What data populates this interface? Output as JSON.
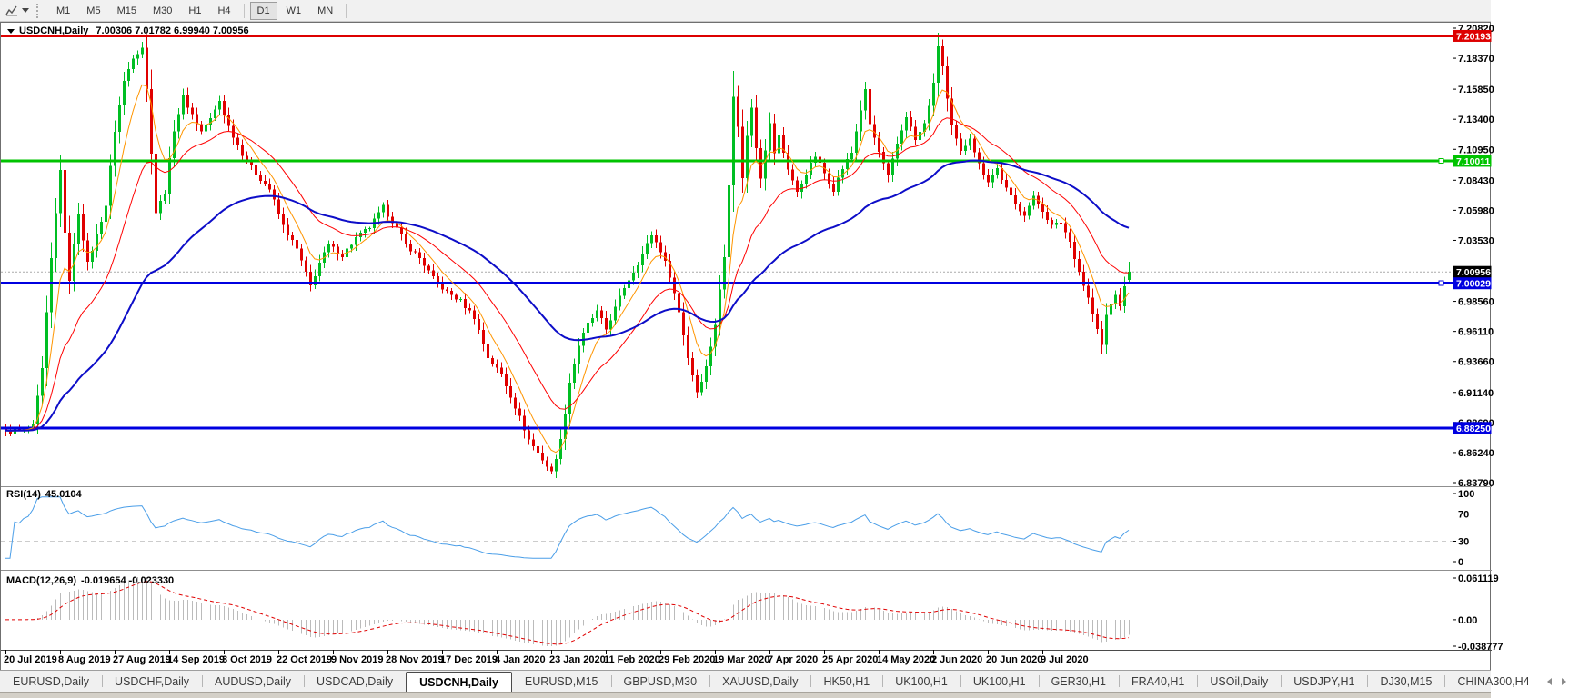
{
  "toolbar": {
    "timeframes": [
      "M1",
      "M5",
      "M15",
      "M30",
      "H1",
      "H4",
      "D1",
      "W1",
      "MN"
    ],
    "active": "D1",
    "separators_after": [
      "H4",
      "MN"
    ],
    "icons": [
      "chart-icon",
      "dropdown-caret-icon"
    ]
  },
  "chart_data": {
    "type": "candlestick",
    "title": "USDCNH,Daily",
    "ohlc_text": "7.00306 7.01782 6.99940 7.00956",
    "last_candle": {
      "open": 7.00306,
      "high": 7.01782,
      "low": 6.9994,
      "close": 7.00956
    },
    "num_candles": 248,
    "candles_per_label": 12,
    "x_axis_labels": [
      "20 Jul 2019",
      "8 Aug 2019",
      "27 Aug 2019",
      "14 Sep 2019",
      "3 Oct 2019",
      "22 Oct 2019",
      "9 Nov 2019",
      "28 Nov 2019",
      "17 Dec 2019",
      "4 Jan 2020",
      "23 Jan 2020",
      "11 Feb 2020",
      "29 Feb 2020",
      "19 Mar 2020",
      "7 Apr 2020",
      "25 Apr 2020",
      "14 May 2020",
      "2 Jun 2020",
      "20 Jun 2020",
      "9 Jul 2020"
    ],
    "price_axis_ticks": [
      "7.20820",
      "7.18370",
      "7.15850",
      "7.13400",
      "7.10950",
      "7.08430",
      "7.05980",
      "7.03530",
      "6.98560",
      "6.96110",
      "6.93660",
      "6.91140",
      "6.88690",
      "6.86240",
      "6.83790"
    ],
    "axis_top_value": 7.2082,
    "axis_bottom_value": 6.8379,
    "levels": [
      {
        "value": 7.20193,
        "label": "7.20193",
        "color": "#dd0000",
        "marker": false
      },
      {
        "value": 7.10011,
        "label": "7.10011",
        "color": "#00c300",
        "marker": true
      },
      {
        "value": 7.00029,
        "label": "7.00029",
        "color": "#0000e0",
        "marker": true
      },
      {
        "value": 6.8825,
        "label": "6.88250",
        "color": "#0000e0",
        "marker": false
      }
    ],
    "current_price": {
      "value": 7.00956,
      "label": "7.00956",
      "badge_color": "#000000"
    },
    "price_anchors": [
      [
        0,
        6.879
      ],
      [
        4,
        6.881
      ],
      [
        6,
        6.884
      ],
      [
        8,
        6.93
      ],
      [
        10,
        7.02
      ],
      [
        12,
        7.094
      ],
      [
        13,
        7.04
      ],
      [
        14,
        7.004
      ],
      [
        16,
        7.058
      ],
      [
        18,
        7.016
      ],
      [
        20,
        7.04
      ],
      [
        22,
        7.064
      ],
      [
        24,
        7.125
      ],
      [
        26,
        7.165
      ],
      [
        28,
        7.185
      ],
      [
        30,
        7.193
      ],
      [
        31,
        7.158
      ],
      [
        33,
        7.058
      ],
      [
        35,
        7.075
      ],
      [
        37,
        7.126
      ],
      [
        39,
        7.152
      ],
      [
        41,
        7.138
      ],
      [
        43,
        7.124
      ],
      [
        45,
        7.134
      ],
      [
        47,
        7.149
      ],
      [
        49,
        7.128
      ],
      [
        52,
        7.106
      ],
      [
        55,
        7.09
      ],
      [
        58,
        7.077
      ],
      [
        61,
        7.047
      ],
      [
        64,
        7.028
      ],
      [
        66,
        7.008
      ],
      [
        67,
        6.998
      ],
      [
        69,
        7.017
      ],
      [
        71,
        7.031
      ],
      [
        74,
        7.023
      ],
      [
        77,
        7.037
      ],
      [
        80,
        7.046
      ],
      [
        83,
        7.062
      ],
      [
        85,
        7.051
      ],
      [
        88,
        7.032
      ],
      [
        91,
        7.021
      ],
      [
        94,
        7.004
      ],
      [
        97,
        6.993
      ],
      [
        100,
        6.986
      ],
      [
        103,
        6.973
      ],
      [
        106,
        6.94
      ],
      [
        109,
        6.926
      ],
      [
        112,
        6.9
      ],
      [
        115,
        6.873
      ],
      [
        118,
        6.857
      ],
      [
        120,
        6.846
      ],
      [
        122,
        6.872
      ],
      [
        124,
        6.92
      ],
      [
        126,
        6.95
      ],
      [
        128,
        6.967
      ],
      [
        130,
        6.977
      ],
      [
        132,
        6.963
      ],
      [
        134,
        6.98
      ],
      [
        136,
        6.997
      ],
      [
        138,
        7.01
      ],
      [
        140,
        7.024
      ],
      [
        142,
        7.04
      ],
      [
        144,
        7.027
      ],
      [
        146,
        7.007
      ],
      [
        148,
        6.977
      ],
      [
        150,
        6.94
      ],
      [
        152,
        6.912
      ],
      [
        154,
        6.932
      ],
      [
        156,
        6.967
      ],
      [
        158,
        7.022
      ],
      [
        159,
        7.082
      ],
      [
        160,
        7.154
      ],
      [
        161,
        7.127
      ],
      [
        162,
        7.087
      ],
      [
        163,
        7.12
      ],
      [
        164,
        7.144
      ],
      [
        165,
        7.112
      ],
      [
        166,
        7.087
      ],
      [
        167,
        7.11
      ],
      [
        168,
        7.13
      ],
      [
        169,
        7.107
      ],
      [
        170,
        7.12
      ],
      [
        172,
        7.094
      ],
      [
        174,
        7.074
      ],
      [
        176,
        7.09
      ],
      [
        178,
        7.104
      ],
      [
        180,
        7.09
      ],
      [
        182,
        7.077
      ],
      [
        184,
        7.094
      ],
      [
        186,
        7.107
      ],
      [
        188,
        7.142
      ],
      [
        189,
        7.157
      ],
      [
        190,
        7.13
      ],
      [
        192,
        7.107
      ],
      [
        194,
        7.087
      ],
      [
        196,
        7.114
      ],
      [
        198,
        7.137
      ],
      [
        200,
        7.117
      ],
      [
        202,
        7.13
      ],
      [
        204,
        7.162
      ],
      [
        205,
        7.194
      ],
      [
        206,
        7.177
      ],
      [
        207,
        7.15
      ],
      [
        208,
        7.127
      ],
      [
        210,
        7.107
      ],
      [
        212,
        7.12
      ],
      [
        214,
        7.097
      ],
      [
        216,
        7.084
      ],
      [
        218,
        7.094
      ],
      [
        220,
        7.077
      ],
      [
        222,
        7.064
      ],
      [
        224,
        7.057
      ],
      [
        226,
        7.07
      ],
      [
        228,
        7.06
      ],
      [
        230,
        7.047
      ],
      [
        232,
        7.05
      ],
      [
        234,
        7.034
      ],
      [
        236,
        7.01
      ],
      [
        238,
        6.988
      ],
      [
        240,
        6.962
      ],
      [
        241,
        6.95
      ],
      [
        242,
        6.974
      ],
      [
        244,
        6.992
      ],
      [
        245,
        6.98
      ],
      [
        246,
        6.999
      ],
      [
        247,
        7.00956
      ]
    ],
    "moving_averages": [
      {
        "name": "fast",
        "period": 7,
        "color": "#ff9500",
        "width": 1
      },
      {
        "name": "mid",
        "period": 20,
        "color": "#ff0000",
        "width": 1
      },
      {
        "name": "slow",
        "period": 55,
        "color": "#0d0dc8",
        "width": 2
      }
    ],
    "rsi": {
      "label": "RSI(14)",
      "value": "45.0104",
      "period": 14,
      "ticks": [
        "100",
        "70",
        "30",
        "0"
      ],
      "dashed_levels": [
        70,
        30
      ],
      "line_color": "#4a9ee8"
    },
    "macd": {
      "label": "MACD(12,26,9)",
      "values": "-0.019654 -0.023330",
      "fast": 12,
      "slow": 26,
      "signal": 9,
      "ticks": [
        "0.061119",
        "0.00",
        "-0.038777"
      ],
      "hist_color": "#bbbbbb",
      "signal_color": "#e00000"
    }
  },
  "colors": {
    "up_candle": "#00be23",
    "down_candle": "#e00000",
    "current_price_line": "#aaaaaa",
    "grid_dash": "#cccccc",
    "axis_line": "#4a4a4a"
  },
  "tabs": {
    "items": [
      "EURUSD,Daily",
      "USDCHF,Daily",
      "AUDUSD,Daily",
      "USDCAD,Daily",
      "USDCNH,Daily",
      "EURUSD,M15",
      "GBPUSD,M30",
      "XAUUSD,Daily",
      "HK50,H1",
      "UK100,H1",
      "UK100,H1",
      "GER30,H1",
      "FRA40,H1",
      "USOil,Daily",
      "USDJPY,H1",
      "DJ30,M15",
      "CHINA300,H4"
    ],
    "active_index": 4
  }
}
